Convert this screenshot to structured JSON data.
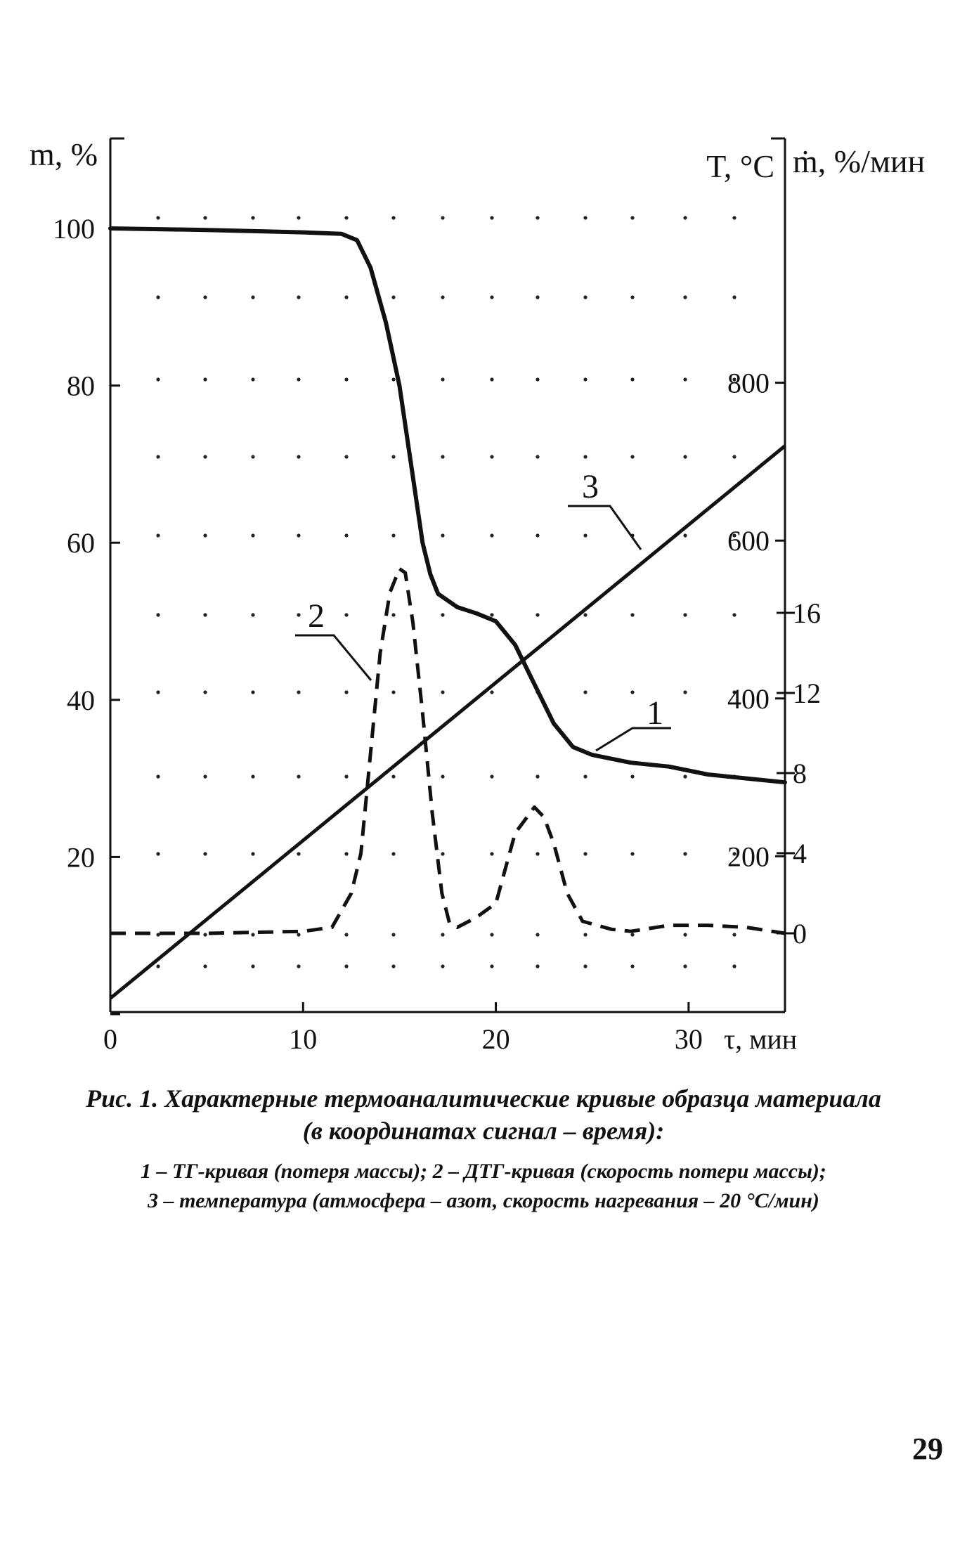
{
  "chart_data": {
    "type": "line",
    "axes": {
      "left": {
        "label": "m, %",
        "ticks": [
          "20",
          "40",
          "60",
          "80",
          "100"
        ],
        "range": [
          0,
          110
        ]
      },
      "right_inner": {
        "label": "T, °C",
        "ticks": [
          "200",
          "400",
          "600",
          "800"
        ]
      },
      "right_outer": {
        "label": "ṁ, %/мин",
        "ticks": [
          "0",
          "4",
          "8",
          "12",
          "16"
        ]
      },
      "bottom": {
        "label": "τ, мин",
        "ticks": [
          "0",
          "10",
          "20",
          "30"
        ],
        "range": [
          0,
          35
        ]
      }
    },
    "series": [
      {
        "name": "1",
        "axis": "left",
        "style": "solid",
        "points": [
          [
            0,
            100
          ],
          [
            5,
            99.8
          ],
          [
            10,
            99.5
          ],
          [
            12,
            99.3
          ],
          [
            12.8,
            98.5
          ],
          [
            13.5,
            95
          ],
          [
            14.3,
            88
          ],
          [
            15,
            80
          ],
          [
            15.6,
            70
          ],
          [
            16.2,
            60
          ],
          [
            16.6,
            56
          ],
          [
            17,
            53.5
          ],
          [
            18,
            51.8
          ],
          [
            19,
            51
          ],
          [
            20,
            50
          ],
          [
            21,
            47
          ],
          [
            22,
            42
          ],
          [
            23,
            37
          ],
          [
            24,
            34
          ],
          [
            25,
            33
          ],
          [
            27,
            32
          ],
          [
            29,
            31.5
          ],
          [
            31,
            30.5
          ],
          [
            33,
            30
          ],
          [
            35,
            29.5
          ]
        ]
      },
      {
        "name": "2",
        "axis": "right_outer",
        "style": "dashed",
        "points": [
          [
            0,
            0
          ],
          [
            5,
            0
          ],
          [
            10,
            0.1
          ],
          [
            11.5,
            0.3
          ],
          [
            12.5,
            2
          ],
          [
            13,
            4
          ],
          [
            13.5,
            9
          ],
          [
            14,
            14
          ],
          [
            14.5,
            17
          ],
          [
            15,
            18.2
          ],
          [
            15.3,
            18
          ],
          [
            15.7,
            15.5
          ],
          [
            16.2,
            11
          ],
          [
            16.7,
            6
          ],
          [
            17.2,
            2
          ],
          [
            17.6,
            0.5
          ],
          [
            18,
            0.3
          ],
          [
            19,
            0.8
          ],
          [
            20,
            1.5
          ],
          [
            21,
            5
          ],
          [
            22,
            6.3
          ],
          [
            22.5,
            5.8
          ],
          [
            23,
            4.5
          ],
          [
            23.7,
            2
          ],
          [
            24.5,
            0.6
          ],
          [
            26,
            0.2
          ],
          [
            27,
            0.1
          ],
          [
            29,
            0.4
          ],
          [
            31,
            0.4
          ],
          [
            33,
            0.3
          ],
          [
            35,
            0
          ]
        ]
      },
      {
        "name": "3",
        "axis": "right_inner",
        "style": "solid",
        "points": [
          [
            0,
            20
          ],
          [
            35,
            720
          ]
        ]
      }
    ]
  },
  "caption": {
    "line1": "Рис. 1. Характерные термоаналитические кривые образца материала",
    "line2": "(в координатах сигнал – время):",
    "line3": "1 – ТГ-кривая (потеря массы); 2 – ДТГ-кривая (скорость потери массы);",
    "line4": "3 – температура (атмосфера – азот, скорость нагревания – 20 °С/мин)"
  },
  "page_number": "29"
}
